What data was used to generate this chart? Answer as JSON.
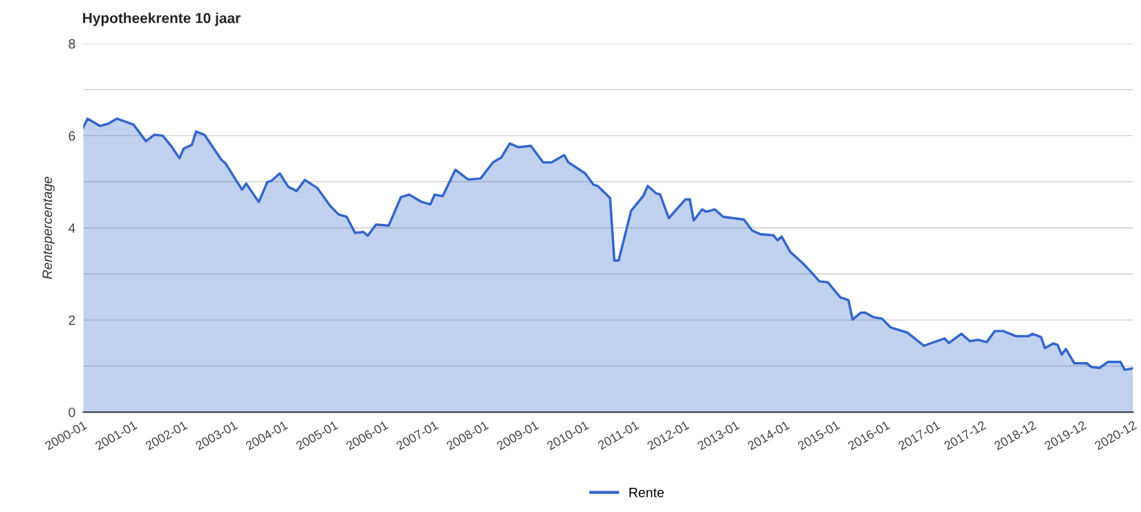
{
  "chart_data": {
    "type": "area",
    "title": "Hypotheekrente 10 jaar",
    "ylabel": "Rentepercentage",
    "x": [
      "2000-01",
      "2000-02",
      "2000-05",
      "2000-07",
      "2000-09",
      "2001-01",
      "2001-04",
      "2001-06",
      "2001-08",
      "2001-10",
      "2001-12",
      "2002-01",
      "2002-03",
      "2002-04",
      "2002-06",
      "2002-10",
      "2002-11",
      "2003-03",
      "2003-04",
      "2003-07",
      "2003-09",
      "2003-10",
      "2003-12",
      "2004-02",
      "2004-04",
      "2004-06",
      "2004-09",
      "2004-12",
      "2005-02",
      "2005-04",
      "2005-06",
      "2005-08",
      "2005-09",
      "2005-11",
      "2006-02",
      "2006-05",
      "2006-07",
      "2006-10",
      "2006-12",
      "2007-01",
      "2007-03",
      "2007-06",
      "2007-09",
      "2007-12",
      "2008-03",
      "2008-05",
      "2008-07",
      "2008-09",
      "2008-12",
      "2009-03",
      "2009-05",
      "2009-08",
      "2009-09",
      "2010-01",
      "2010-03",
      "2010-04",
      "2010-07",
      "2010-08",
      "2010-09",
      "2010-12",
      "2011-03",
      "2011-04",
      "2011-06",
      "2011-07",
      "2011-09",
      "2012-01",
      "2012-02",
      "2012-03",
      "2012-05",
      "2012-06",
      "2012-08",
      "2012-10",
      "2013-03",
      "2013-05",
      "2013-07",
      "2013-10",
      "2013-11",
      "2013-12",
      "2014-02",
      "2014-05",
      "2014-07",
      "2014-09",
      "2014-11",
      "2015-02",
      "2015-04",
      "2015-05",
      "2015-07",
      "2015-08",
      "2015-10",
      "2015-12",
      "2016-02",
      "2016-06",
      "2016-10",
      "2017-01",
      "2017-03",
      "2017-04",
      "2017-05",
      "2017-07",
      "2017-09",
      "2017-11",
      "2018-01",
      "2018-03",
      "2018-05",
      "2018-08",
      "2018-11",
      "2018-12",
      "2019-02",
      "2019-03",
      "2019-05",
      "2019-06",
      "2019-07",
      "2019-08",
      "2019-10",
      "2020-01",
      "2020-02",
      "2020-04",
      "2020-06",
      "2020-09",
      "2020-10",
      "2020-12"
    ],
    "series": [
      {
        "name": "Rente",
        "color": "#3366cc",
        "values": [
          6.18,
          6.37,
          6.21,
          6.26,
          6.37,
          6.24,
          5.88,
          6.02,
          6.0,
          5.78,
          5.51,
          5.72,
          5.8,
          6.09,
          6.02,
          5.48,
          5.4,
          4.83,
          4.96,
          4.56,
          4.99,
          5.02,
          5.18,
          4.89,
          4.8,
          5.04,
          4.86,
          4.48,
          4.29,
          4.24,
          3.89,
          3.91,
          3.83,
          4.07,
          4.05,
          4.67,
          4.72,
          4.56,
          4.51,
          4.72,
          4.69,
          5.26,
          5.05,
          5.07,
          5.42,
          5.53,
          5.83,
          5.75,
          5.78,
          5.42,
          5.42,
          5.58,
          5.42,
          5.18,
          4.94,
          4.91,
          4.65,
          3.29,
          3.29,
          4.37,
          4.7,
          4.91,
          4.75,
          4.72,
          4.21,
          4.62,
          4.62,
          4.16,
          4.4,
          4.35,
          4.4,
          4.24,
          4.18,
          3.94,
          3.86,
          3.84,
          3.73,
          3.81,
          3.48,
          3.24,
          3.05,
          2.84,
          2.82,
          2.49,
          2.43,
          2.01,
          2.16,
          2.16,
          2.06,
          2.03,
          1.84,
          1.73,
          1.44,
          1.54,
          1.6,
          1.5,
          1.57,
          1.7,
          1.54,
          1.57,
          1.52,
          1.76,
          1.76,
          1.65,
          1.65,
          1.7,
          1.63,
          1.39,
          1.49,
          1.46,
          1.25,
          1.37,
          1.06,
          1.06,
          0.98,
          0.96,
          1.09,
          1.09,
          0.92,
          0.95
        ]
      }
    ],
    "xlim": [
      "2000-01",
      "2020-12"
    ],
    "xticks": [
      "2000-01",
      "2001-01",
      "2002-01",
      "2003-01",
      "2004-01",
      "2005-01",
      "2006-01",
      "2007-01",
      "2008-01",
      "2009-01",
      "2010-01",
      "2011-01",
      "2012-01",
      "2013-01",
      "2014-01",
      "2015-01",
      "2016-01",
      "2017-01",
      "2017-12",
      "2018-12",
      "2019-12",
      "2020-12"
    ],
    "ylim": [
      0,
      8
    ],
    "yticks": [
      0,
      {
        "value": 1,
        "label": null
      },
      2,
      {
        "value": 3,
        "label": null
      },
      4,
      {
        "value": 5,
        "label": null
      },
      6,
      {
        "value": 7,
        "label": null
      },
      8
    ],
    "grid": "y",
    "legend": "bottom"
  }
}
